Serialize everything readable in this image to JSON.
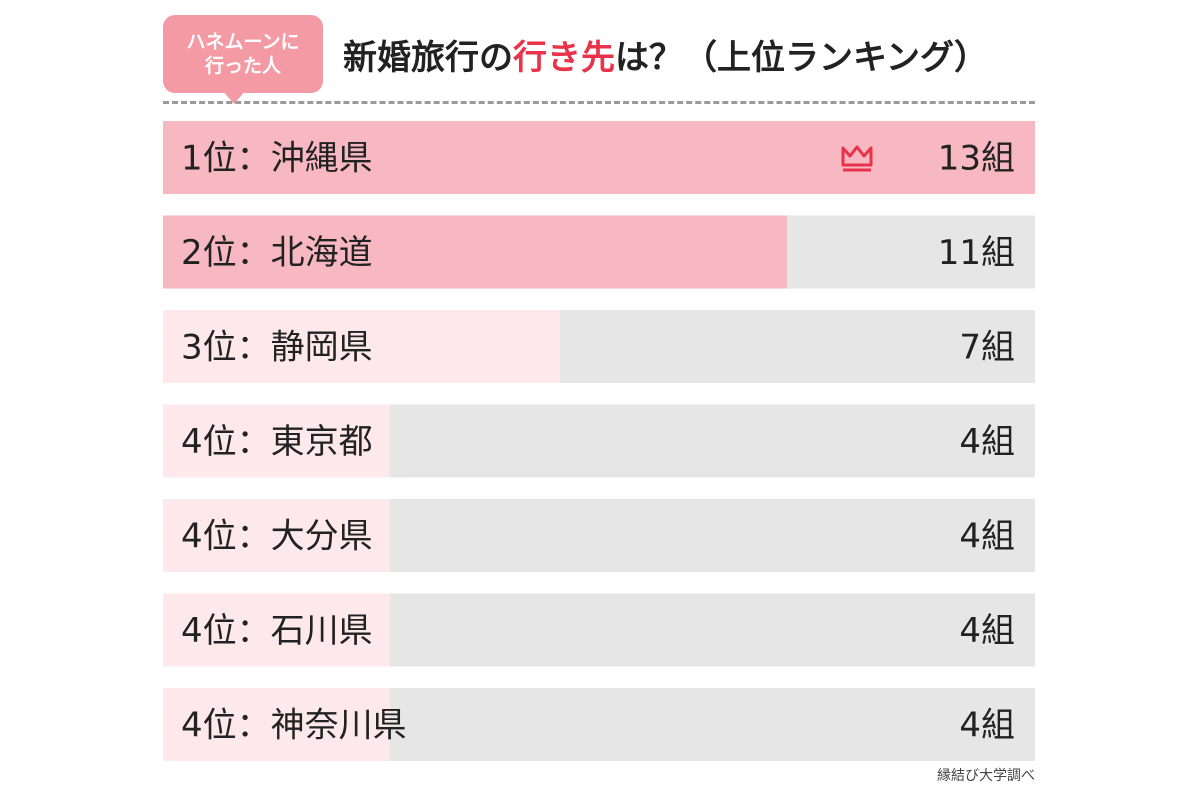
{
  "badge": {
    "line1": "ハネムーンに",
    "line2": "行った人"
  },
  "title": {
    "before": "新婚旅行の",
    "highlight": "行き先",
    "after": "は？（上位ランキング）"
  },
  "chart_data": {
    "type": "bar",
    "orientation": "horizontal",
    "categories": [
      "1位：沖縄県",
      "2位：北海道",
      "3位：静岡県",
      "4位：東京都",
      "4位：大分県",
      "4位：石川県",
      "4位：神奈川県"
    ],
    "values": [
      13,
      11,
      7,
      4,
      4,
      4,
      4
    ],
    "value_labels": [
      "13組",
      "11組",
      "7組",
      "4組",
      "4組",
      "4組",
      "4組"
    ],
    "xlim": [
      0,
      13
    ],
    "grid": false,
    "annotations": [
      "crown-icon on 1位"
    ]
  },
  "colors": {
    "strong_bar": "#f7b8c1",
    "light_bar": "#fde8ec",
    "track": "#e6e6e6",
    "accent": "#e8334a",
    "badge": "#f39aa4"
  },
  "source": "縁結び大学調べ"
}
